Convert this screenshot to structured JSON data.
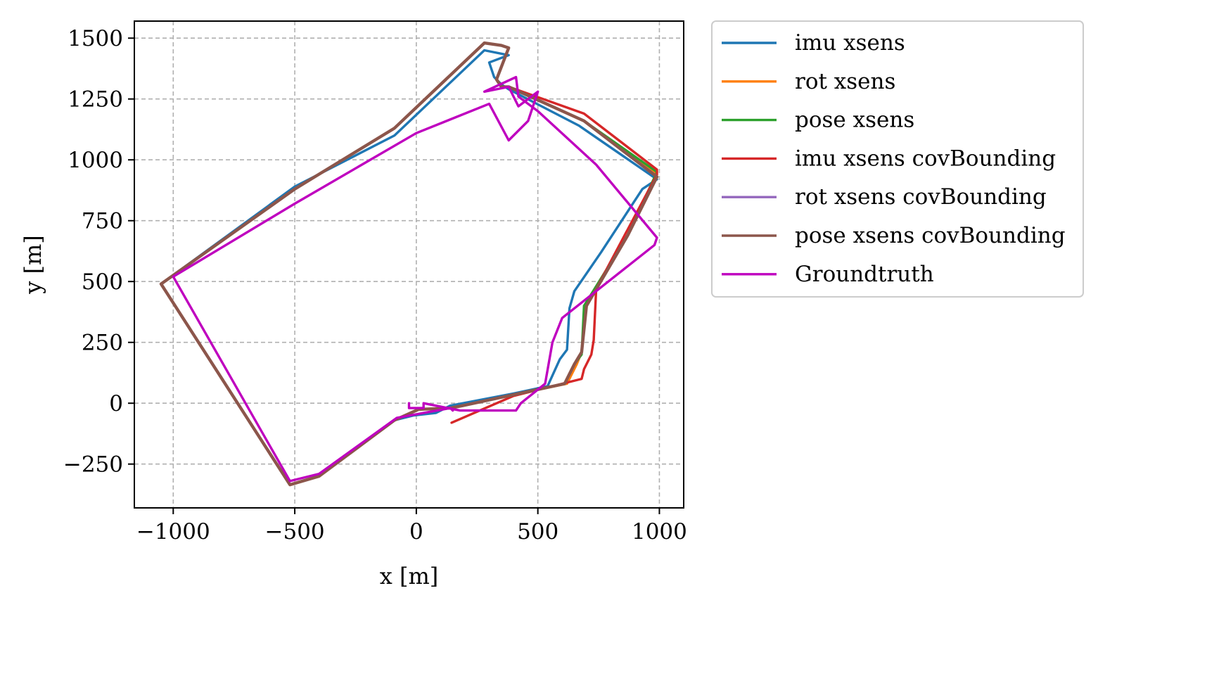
{
  "chart_data": {
    "type": "line",
    "title": "",
    "xlabel": "x [m]",
    "ylabel": "y [m]",
    "xlim": [
      -1160,
      1100
    ],
    "ylim": [
      -430,
      1570
    ],
    "xticks": [
      -1000,
      -500,
      0,
      500,
      1000
    ],
    "yticks": [
      -250,
      0,
      250,
      500,
      750,
      1000,
      1250,
      1500
    ],
    "xtick_labels": [
      "−1000",
      "−500",
      "0",
      "500",
      "1000"
    ],
    "ytick_labels": [
      "−250",
      "0",
      "250",
      "500",
      "750",
      "1000",
      "1250",
      "1500"
    ],
    "grid": true,
    "legend_position": "outside-right",
    "series": [
      {
        "name": "imu xsens",
        "color": "#1f77b4",
        "x": [
          -10,
          80,
          140,
          400,
          540,
          590,
          620,
          630,
          650,
          760,
          930,
          990,
          670,
          380,
          350,
          320,
          300,
          380,
          280,
          -90,
          -500,
          -1050,
          -520,
          -400,
          -90,
          -10
        ],
        "y": [
          -50,
          -40,
          -10,
          40,
          70,
          180,
          220,
          390,
          460,
          620,
          880,
          920,
          1140,
          1290,
          1310,
          1340,
          1400,
          1430,
          1450,
          1100,
          890,
          490,
          -335,
          -300,
          -70,
          -50
        ]
      },
      {
        "name": "rot xsens",
        "color": "#ff7f0e",
        "x": [
          140,
          190,
          400,
          620,
          660,
          680,
          700,
          870,
          990,
          690,
          380,
          350,
          330,
          380,
          350,
          280,
          -90,
          -500,
          -1050,
          -520,
          -400,
          -90,
          10,
          140
        ],
        "y": [
          -20,
          -10,
          35,
          80,
          160,
          210,
          410,
          690,
          940,
          1160,
          1300,
          1300,
          1330,
          1460,
          1470,
          1480,
          1130,
          880,
          490,
          -335,
          -300,
          -70,
          -25,
          -20
        ]
      },
      {
        "name": "pose xsens",
        "color": "#2ca02c",
        "x": [
          140,
          190,
          400,
          610,
          650,
          680,
          690,
          870,
          990,
          690,
          380,
          350,
          330,
          380,
          350,
          280,
          -90,
          -500,
          -1050,
          -520,
          -400,
          -90,
          10,
          140
        ],
        "y": [
          -20,
          -10,
          35,
          80,
          160,
          200,
          400,
          690,
          950,
          1160,
          1300,
          1300,
          1330,
          1460,
          1470,
          1480,
          1130,
          880,
          490,
          -335,
          -300,
          -70,
          -25,
          -20
        ]
      },
      {
        "name": "imu xsens covBounding",
        "color": "#d62728",
        "x": [
          145,
          400,
          680,
          690,
          720,
          730,
          740,
          990,
          990,
          690,
          380,
          350,
          330,
          380,
          350,
          280,
          -90,
          -500,
          -1050,
          -520,
          -400,
          -90,
          10,
          140
        ],
        "y": [
          -80,
          30,
          100,
          140,
          200,
          260,
          470,
          940,
          960,
          1190,
          1300,
          1300,
          1330,
          1460,
          1470,
          1480,
          1130,
          880,
          490,
          -335,
          -300,
          -70,
          -25,
          -20
        ]
      },
      {
        "name": "rot xsens covBounding",
        "color": "#9467bd",
        "x": [
          140,
          190,
          400,
          610,
          650,
          680,
          700,
          870,
          990,
          690,
          380,
          350,
          330,
          380,
          350,
          280,
          -90,
          -500,
          -1050,
          -520,
          -400,
          -90,
          10,
          140
        ],
        "y": [
          -20,
          -10,
          35,
          80,
          160,
          210,
          400,
          690,
          930,
          1160,
          1300,
          1300,
          1330,
          1460,
          1470,
          1480,
          1130,
          880,
          490,
          -335,
          -300,
          -70,
          -25,
          -20
        ]
      },
      {
        "name": "pose xsens covBounding",
        "color": "#8c564b",
        "x": [
          140,
          190,
          400,
          610,
          650,
          680,
          700,
          870,
          990,
          690,
          380,
          350,
          330,
          380,
          350,
          280,
          -90,
          -500,
          -1050,
          -520,
          -400,
          -90,
          10,
          140
        ],
        "y": [
          -20,
          -10,
          35,
          80,
          160,
          210,
          400,
          690,
          930,
          1160,
          1300,
          1300,
          1330,
          1460,
          1470,
          1480,
          1130,
          880,
          490,
          -335,
          -300,
          -70,
          -25,
          -20
        ]
      },
      {
        "name": "Groundtruth",
        "color": "#bf00bf",
        "x": [
          -30,
          -30,
          30,
          30,
          180,
          410,
          430,
          530,
          560,
          600,
          980,
          990,
          740,
          500,
          420,
          410,
          280,
          380,
          420,
          500,
          460,
          380,
          300,
          0,
          -500,
          -1000,
          -520,
          -400,
          -80,
          140,
          150
        ],
        "y": [
          0,
          -20,
          -20,
          0,
          -30,
          -30,
          0,
          80,
          250,
          350,
          650,
          680,
          980,
          1200,
          1260,
          1340,
          1280,
          1300,
          1220,
          1280,
          1160,
          1080,
          1230,
          1110,
          820,
          520,
          -320,
          -290,
          -60,
          -20,
          -30
        ]
      }
    ]
  }
}
